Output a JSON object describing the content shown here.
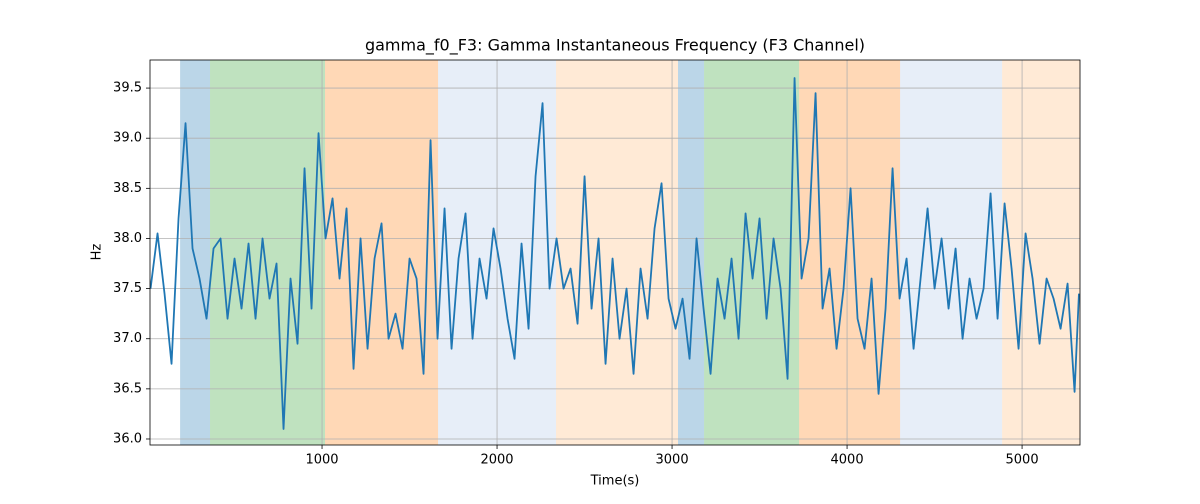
{
  "chart_data": {
    "type": "line",
    "title": "gamma_f0_F3: Gamma Instantaneous Frequency (F3 Channel)",
    "xlabel": "Time(s)",
    "ylabel": "Hz",
    "color": "#1f77b4",
    "grid": true,
    "xlim": [
      17,
      5331
    ],
    "ylim": [
      35.94,
      39.78
    ],
    "xticks": [
      1000,
      2000,
      3000,
      4000,
      5000
    ],
    "yticks": [
      {
        "value": 36,
        "label": "36.0"
      },
      36.5,
      {
        "value": 37,
        "label": "37.0"
      },
      37.5,
      {
        "value": 38,
        "label": "38.0"
      },
      38.5,
      {
        "value": 39,
        "label": "39.0"
      },
      39.5
    ],
    "regions": [
      {
        "start": 189,
        "end": 360,
        "color": "#1f77b4"
      },
      {
        "start": 360,
        "end": 1017,
        "color": "#2ca02c"
      },
      {
        "start": 1017,
        "end": 1663,
        "color": "#ff7f0e"
      },
      {
        "start": 1663,
        "end": 2337,
        "color": "#aec7e8"
      },
      {
        "start": 2337,
        "end": 3034,
        "color": "#ffbb78"
      },
      {
        "start": 3034,
        "end": 3183,
        "color": "#1f77b4"
      },
      {
        "start": 3183,
        "end": 3726,
        "color": "#2ca02c"
      },
      {
        "start": 3726,
        "end": 4303,
        "color": "#ff7f0e"
      },
      {
        "start": 4303,
        "end": 4886,
        "color": "#aec7e8"
      },
      {
        "start": 4886,
        "end": 5331,
        "color": "#ffbb78"
      }
    ],
    "x": [
      20,
      60,
      100,
      140,
      180,
      220,
      260,
      300,
      340,
      380,
      420,
      460,
      500,
      540,
      580,
      620,
      660,
      700,
      740,
      780,
      820,
      860,
      900,
      940,
      980,
      1020,
      1060,
      1100,
      1140,
      1180,
      1220,
      1260,
      1300,
      1340,
      1380,
      1420,
      1460,
      1500,
      1540,
      1580,
      1620,
      1660,
      1700,
      1740,
      1780,
      1820,
      1860,
      1900,
      1940,
      1980,
      2020,
      2060,
      2100,
      2140,
      2180,
      2220,
      2260,
      2300,
      2340,
      2380,
      2420,
      2460,
      2500,
      2540,
      2580,
      2620,
      2660,
      2700,
      2740,
      2780,
      2820,
      2860,
      2900,
      2940,
      2980,
      3020,
      3060,
      3100,
      3140,
      3180,
      3220,
      3260,
      3300,
      3340,
      3380,
      3420,
      3460,
      3500,
      3540,
      3580,
      3620,
      3660,
      3700,
      3740,
      3780,
      3820,
      3860,
      3900,
      3940,
      3980,
      4020,
      4060,
      4100,
      4140,
      4180,
      4220,
      4260,
      4300,
      4340,
      4380,
      4420,
      4460,
      4500,
      4540,
      4580,
      4620,
      4660,
      4700,
      4740,
      4780,
      4820,
      4860,
      4900,
      4940,
      4980,
      5020,
      5060,
      5100,
      5140,
      5180,
      5220,
      5260,
      5300,
      5325
    ],
    "values": [
      37.5,
      38.05,
      37.45,
      36.75,
      38.2,
      39.15,
      37.9,
      37.6,
      37.2,
      37.9,
      38.0,
      37.2,
      37.8,
      37.3,
      37.95,
      37.2,
      38.0,
      37.4,
      37.75,
      36.1,
      37.6,
      36.95,
      38.7,
      37.3,
      39.05,
      38.0,
      38.4,
      37.6,
      38.3,
      36.7,
      38.0,
      36.9,
      37.8,
      38.15,
      37.0,
      37.25,
      36.9,
      37.8,
      37.6,
      36.65,
      38.98,
      37.0,
      38.3,
      36.9,
      37.8,
      38.25,
      37.0,
      37.8,
      37.4,
      38.1,
      37.7,
      37.2,
      36.8,
      37.95,
      37.1,
      38.62,
      39.35,
      37.5,
      38.0,
      37.5,
      37.7,
      37.15,
      38.62,
      37.3,
      38.0,
      36.75,
      37.8,
      37.0,
      37.5,
      36.65,
      37.7,
      37.2,
      38.1,
      38.55,
      37.4,
      37.1,
      37.4,
      36.8,
      38.0,
      37.3,
      36.65,
      37.6,
      37.2,
      37.8,
      37.0,
      38.25,
      37.6,
      38.2,
      37.2,
      38.0,
      37.5,
      36.6,
      39.6,
      37.6,
      38.0,
      39.45,
      37.3,
      37.7,
      36.9,
      37.5,
      38.5,
      37.2,
      36.9,
      37.6,
      36.45,
      37.3,
      38.7,
      37.4,
      37.8,
      36.9,
      37.6,
      38.3,
      37.5,
      38.0,
      37.3,
      37.9,
      37.0,
      37.6,
      37.2,
      37.5,
      38.45,
      37.2,
      38.35,
      37.7,
      36.9,
      38.05,
      37.6,
      36.95,
      37.6,
      37.4,
      37.1,
      37.55,
      36.47,
      37.45
    ]
  }
}
